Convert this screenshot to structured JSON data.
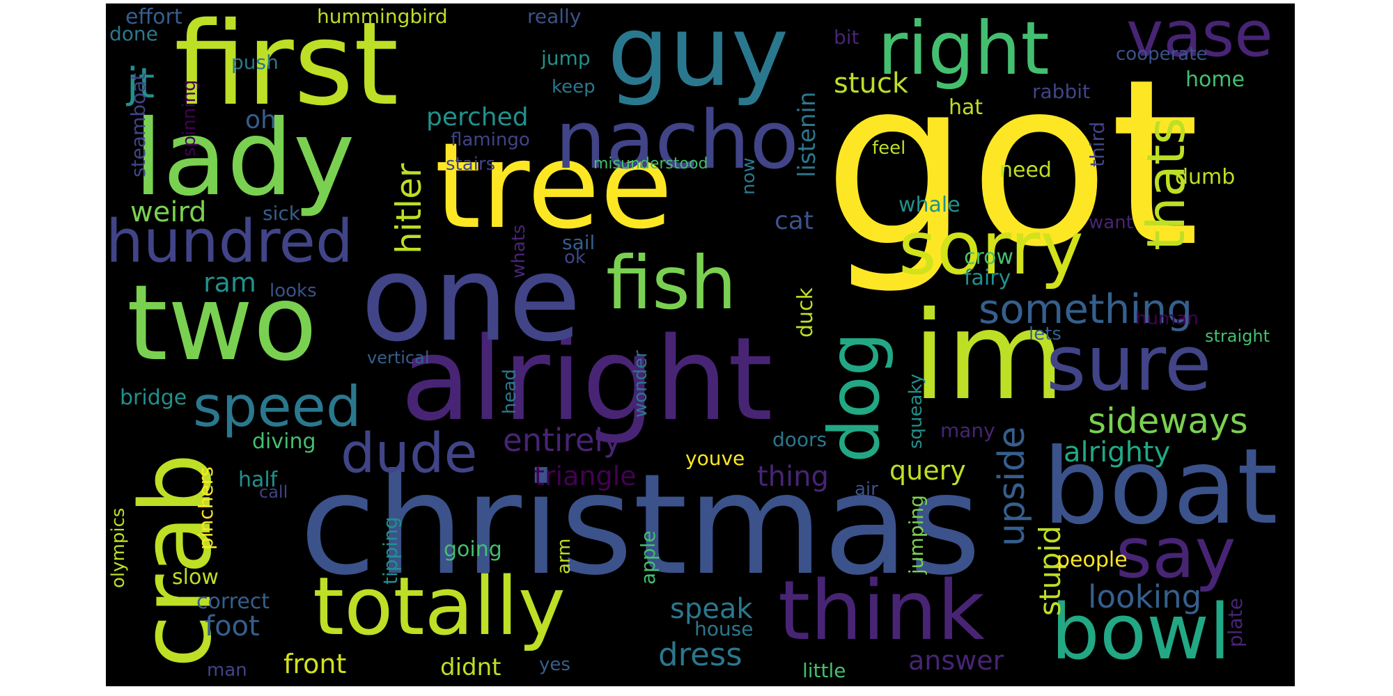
{
  "colors": {
    "background": "#000000",
    "page": "#ffffff",
    "yellow": "#fde725",
    "yellow_green": "#bddf26",
    "light_green": "#7ad151",
    "green": "#44bf70",
    "teal_green": "#22a884",
    "teal": "#21918c",
    "blue_teal": "#2a788e",
    "blue": "#355f8d",
    "indigo": "#414487",
    "purple": "#482475",
    "dark_purple": "#440154"
  },
  "words": [
    "got",
    "christmas",
    "tree",
    "first",
    "alright",
    "im",
    "one",
    "two",
    "guy",
    "lady",
    "crab",
    "boat",
    "nacho",
    "right",
    "sorry",
    "totally",
    "think",
    "fish",
    "bowl",
    "sure",
    "dog",
    "say",
    "hundred",
    "vase",
    "thats",
    "speed",
    "dude",
    "something",
    "sideways",
    "jt",
    "hitler",
    "upside",
    "entirely",
    "alrighty",
    "stuck",
    "dress",
    "looking",
    "stupid",
    "weird",
    "triangle",
    "thing",
    "perched",
    "query",
    "speak",
    "front",
    "didnt",
    "answer",
    "foot",
    "listenin",
    "cat",
    "oh",
    "ram",
    "duck",
    "people",
    "diving",
    "half",
    "slow",
    "going",
    "pinchers",
    "tipping",
    "apple",
    "jumping",
    "squeaky",
    "wonder",
    "head",
    "arm",
    "whale",
    "crow",
    "fairy",
    "need",
    "dumb",
    "home",
    "rabbit",
    "cooperate",
    "third",
    "feel",
    "hat",
    "sail",
    "ok",
    "whats",
    "now",
    "sick",
    "looks",
    "vertical",
    "bridge",
    "olympics",
    "call",
    "correct",
    "man",
    "house",
    "yes",
    "little",
    "plate",
    "many",
    "doors",
    "air",
    "youve",
    "human",
    "lets",
    "straight",
    "want",
    "flamingo",
    "stairs",
    "misunderstood",
    "keep",
    "jump",
    "push",
    "done",
    "effort",
    "hummingbird",
    "really",
    "bit",
    "spinning",
    "steamboat"
  ]
}
